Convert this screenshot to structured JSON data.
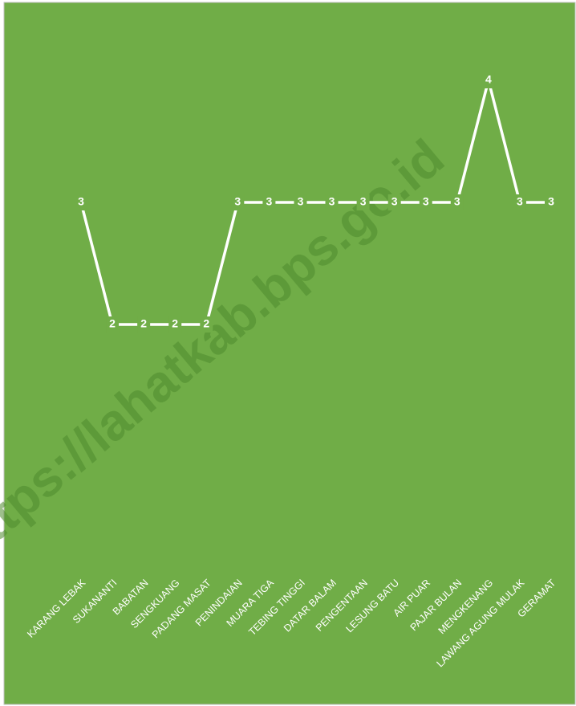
{
  "chart_data": {
    "type": "line",
    "categories": [
      "KARANG LEBAK",
      "SUKANANTI",
      "BABATAN",
      "SENGKUANG",
      "PADANG MASAT",
      "PENINDAIAN",
      "MUARA TIGA",
      "TEBING TINGGI",
      "DATAR BALAM",
      "PENGENTAAN",
      "LESUNG BATU",
      "AIR PUAR",
      "PAJAR BULAN",
      "MENGKENANG",
      "LAWANG AGUNG MULAK",
      "GERAMAT"
    ],
    "values": [
      3,
      2,
      2,
      2,
      2,
      3,
      3,
      3,
      3,
      3,
      3,
      3,
      3,
      4,
      3,
      3
    ],
    "color": "#ffffff",
    "background": "#70ad47",
    "ylim": [
      0,
      4
    ],
    "watermark": "https://lahatkab.bps.go.id"
  }
}
